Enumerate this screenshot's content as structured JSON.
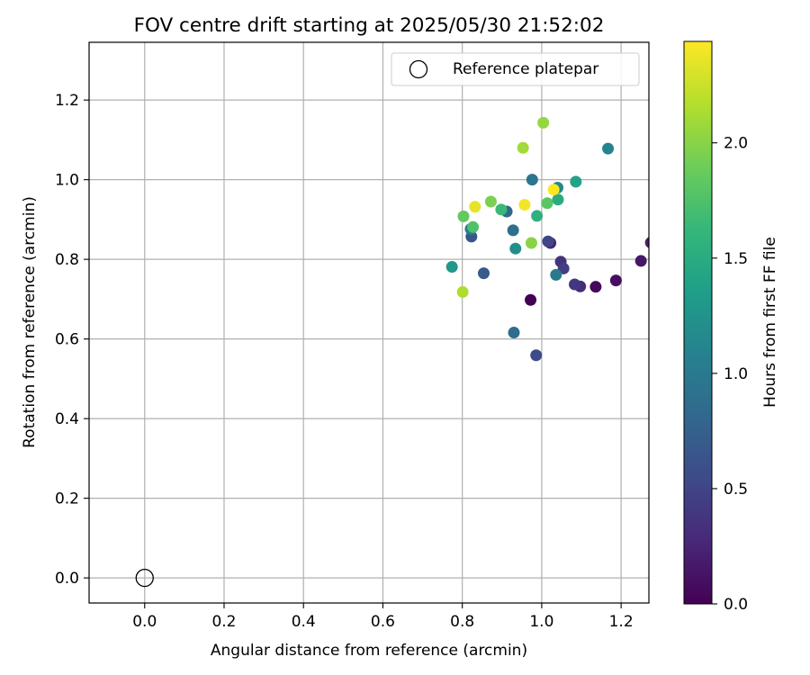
{
  "chart_data": {
    "type": "scatter",
    "title": "FOV centre drift starting at 2025/05/30 21:52:02",
    "xlabel": "Angular distance from reference (arcmin)",
    "ylabel": "Rotation from reference (arcmin)",
    "xlim": [
      -0.14,
      1.27
    ],
    "ylim": [
      -0.063,
      1.345
    ],
    "x_ticks": [
      0.0,
      0.2,
      0.4,
      0.6,
      0.8,
      1.0,
      1.2
    ],
    "x_tick_labels": [
      "0.0",
      "0.2",
      "0.4",
      "0.6",
      "0.8",
      "1.0",
      "1.2"
    ],
    "y_ticks": [
      0.0,
      0.2,
      0.4,
      0.6,
      0.8,
      1.0,
      1.2
    ],
    "y_tick_labels": [
      "0.0",
      "0.2",
      "0.4",
      "0.6",
      "0.8",
      "1.0",
      "1.2"
    ],
    "grid": true,
    "legend": {
      "placement": "top-right",
      "entries": [
        {
          "label": "Reference platepar",
          "marker": "open-circle",
          "color": "#000000"
        }
      ]
    },
    "reference_point": {
      "x": 0.0,
      "y": 0.0
    },
    "colorbar": {
      "label": "Hours from first FF file",
      "colormap": "viridis",
      "range": [
        0.0,
        2.44
      ],
      "ticks": [
        0.0,
        0.5,
        1.0,
        1.5,
        2.0
      ],
      "tick_labels": [
        "0.0",
        "0.5",
        "1.0",
        "1.5",
        "2.0"
      ]
    },
    "points": [
      {
        "x": 0.972,
        "y": 0.698,
        "c": 0.0
      },
      {
        "x": 1.136,
        "y": 0.731,
        "c": 0.05
      },
      {
        "x": 1.187,
        "y": 0.747,
        "c": 0.1
      },
      {
        "x": 1.25,
        "y": 0.796,
        "c": 0.15
      },
      {
        "x": 1.275,
        "y": 0.842,
        "c": 0.2
      },
      {
        "x": 1.022,
        "y": 0.841,
        "c": 0.25
      },
      {
        "x": 1.097,
        "y": 0.732,
        "c": 0.3
      },
      {
        "x": 1.048,
        "y": 0.794,
        "c": 0.35
      },
      {
        "x": 1.083,
        "y": 0.737,
        "c": 0.4
      },
      {
        "x": 1.055,
        "y": 0.777,
        "c": 0.45
      },
      {
        "x": 1.016,
        "y": 0.845,
        "c": 0.5
      },
      {
        "x": 0.986,
        "y": 0.559,
        "c": 0.55
      },
      {
        "x": 0.823,
        "y": 0.857,
        "c": 0.65
      },
      {
        "x": 0.854,
        "y": 0.765,
        "c": 0.7
      },
      {
        "x": 0.912,
        "y": 0.92,
        "c": 0.8
      },
      {
        "x": 0.93,
        "y": 0.616,
        "c": 0.85
      },
      {
        "x": 0.928,
        "y": 0.873,
        "c": 0.9
      },
      {
        "x": 0.976,
        "y": 1.0,
        "c": 0.95
      },
      {
        "x": 1.036,
        "y": 0.761,
        "c": 1.0
      },
      {
        "x": 0.821,
        "y": 0.876,
        "c": 1.05
      },
      {
        "x": 1.167,
        "y": 1.078,
        "c": 1.1
      },
      {
        "x": 1.04,
        "y": 0.98,
        "c": 1.15
      },
      {
        "x": 0.934,
        "y": 0.827,
        "c": 1.2
      },
      {
        "x": 0.774,
        "y": 0.781,
        "c": 1.3
      },
      {
        "x": 1.086,
        "y": 0.995,
        "c": 1.4
      },
      {
        "x": 1.041,
        "y": 0.95,
        "c": 1.5
      },
      {
        "x": 0.988,
        "y": 0.909,
        "c": 1.55
      },
      {
        "x": 0.898,
        "y": 0.925,
        "c": 1.65
      },
      {
        "x": 0.827,
        "y": 0.881,
        "c": 1.75
      },
      {
        "x": 1.014,
        "y": 0.941,
        "c": 1.8
      },
      {
        "x": 0.803,
        "y": 0.908,
        "c": 1.85
      },
      {
        "x": 0.872,
        "y": 0.945,
        "c": 1.95
      },
      {
        "x": 0.974,
        "y": 0.841,
        "c": 2.0
      },
      {
        "x": 1.004,
        "y": 1.143,
        "c": 2.05
      },
      {
        "x": 0.953,
        "y": 1.08,
        "c": 2.1
      },
      {
        "x": 0.801,
        "y": 0.718,
        "c": 2.15
      },
      {
        "x": 0.832,
        "y": 0.932,
        "c": 2.35
      },
      {
        "x": 0.957,
        "y": 0.937,
        "c": 2.4
      },
      {
        "x": 1.03,
        "y": 0.975,
        "c": 2.44
      }
    ]
  }
}
